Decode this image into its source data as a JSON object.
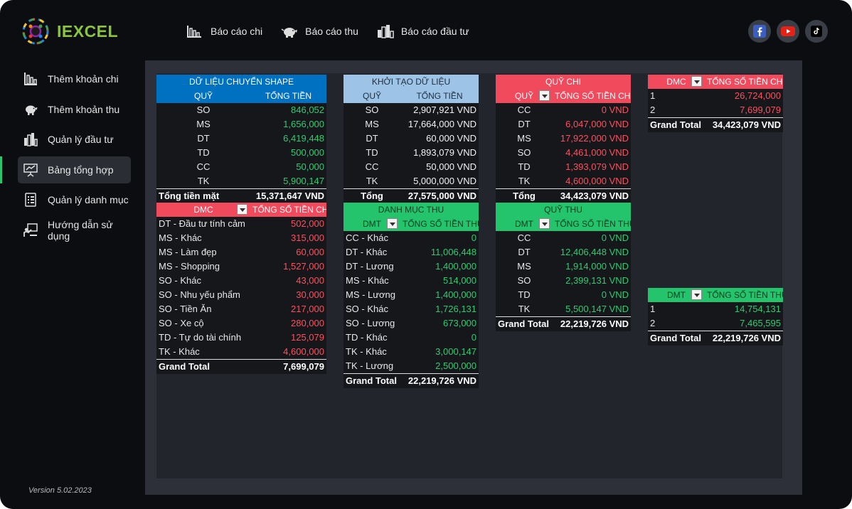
{
  "app": {
    "name": "IEXCEL",
    "version": "Version 5.02.2023"
  },
  "topnav": [
    {
      "label": "Báo cáo chi",
      "icon": "bar-chart-icon"
    },
    {
      "label": "Báo cáo thu",
      "icon": "piggy-bank-icon"
    },
    {
      "label": "Báo cáo đầu tư",
      "icon": "building-chart-icon"
    }
  ],
  "social": [
    "facebook-icon",
    "youtube-icon",
    "tiktok-icon"
  ],
  "sidebar": [
    {
      "label": "Thêm khoản chi",
      "icon": "bar-chart-icon"
    },
    {
      "label": "Thêm khoản thu",
      "icon": "piggy-bank-icon"
    },
    {
      "label": "Quản lý đầu tư",
      "icon": "building-chart-icon"
    },
    {
      "label": "Bảng tổng hợp",
      "icon": "presentation-icon",
      "active": true
    },
    {
      "label": "Quản lý danh mục",
      "icon": "list-icon"
    },
    {
      "label": "Hướng dẫn sử dụng",
      "icon": "teacher-icon"
    }
  ],
  "colors": {
    "accent_green": "#28c76f",
    "header_blue": "#0070c0",
    "header_lightblue": "#9dc3e6",
    "header_red": "#f14a5d",
    "header_green": "#23c46b"
  },
  "tables": {
    "shape": {
      "title": "DỮ LIỆU CHUYỂN SHAPE",
      "col1": "QUỸ",
      "col2": "TỔNG TIỀN",
      "rows": [
        [
          "SO",
          "846,052"
        ],
        [
          "MS",
          "1,656,000"
        ],
        [
          "DT",
          "6,419,448"
        ],
        [
          "TD",
          "500,000"
        ],
        [
          "CC",
          "50,000"
        ],
        [
          "TK",
          "5,900,147"
        ]
      ],
      "total_label": "Tổng tiền mặt",
      "total_value": "15,371,647 VND"
    },
    "init": {
      "title": "KHỞI TẠO DỮ LIỆU",
      "col1": "QUỸ",
      "col2": "TỔNG TIỀN",
      "rows": [
        [
          "SO",
          "2,907,921 VND"
        ],
        [
          "MS",
          "17,664,000 VND"
        ],
        [
          "DT",
          "60,000 VND"
        ],
        [
          "TD",
          "1,893,079 VND"
        ],
        [
          "CC",
          "50,000 VND"
        ],
        [
          "TK",
          "5,000,000 VND"
        ]
      ],
      "total_label": "Tổng",
      "total_value": "27,575,000 VND"
    },
    "quy_chi": {
      "title": "QUỸ CHI",
      "col1": "QUỸ",
      "col2": "TỔNG SỐ TIỀN CHI",
      "rows": [
        [
          "CC",
          "0 VND"
        ],
        [
          "DT",
          "6,047,000 VND"
        ],
        [
          "MS",
          "17,922,000 VND"
        ],
        [
          "SO",
          "4,461,000 VND"
        ],
        [
          "TD",
          "1,393,079 VND"
        ],
        [
          "TK",
          "4,600,000 VND"
        ]
      ],
      "total_label": "Tổng",
      "total_value": "34,423,079 VND"
    },
    "dmc_summary": {
      "col1": "DMC",
      "col2": "TỔNG SỐ TIỀN CHI",
      "rows": [
        [
          "1",
          "26,724,000"
        ],
        [
          "2",
          "7,699,079"
        ]
      ],
      "total_label": "Grand Total",
      "total_value": "34,423,079 VND"
    },
    "dmc_detail": {
      "col1": "DMC",
      "col2": "TỔNG SỐ TIỀN CHI",
      "rows": [
        [
          "DT - Đầu tư tính cảm",
          "502,000"
        ],
        [
          "MS - Khác",
          "315,000"
        ],
        [
          "MS - Làm đẹp",
          "60,000"
        ],
        [
          "MS - Shopping",
          "1,527,000"
        ],
        [
          "SO - Khác",
          "43,000"
        ],
        [
          "SO - Nhu yếu phẩm",
          "30,000"
        ],
        [
          "SO - Tiền Ăn",
          "217,000"
        ],
        [
          "SO - Xe cộ",
          "280,000"
        ],
        [
          "TD - Tự do tài chính",
          "125,079"
        ],
        [
          "TK - Khác",
          "4,600,000"
        ]
      ],
      "total_label": "Grand Total",
      "total_value": "7,699,079"
    },
    "danh_muc_thu": {
      "title": "DANH MỤC THU",
      "col1": "DMT",
      "col2": "TỔNG SỐ TIỀN THU",
      "rows": [
        [
          "CC - Khác",
          "0"
        ],
        [
          "DT - Khác",
          "11,006,448"
        ],
        [
          "DT - Lương",
          "1,400,000"
        ],
        [
          "MS - Khác",
          "514,000"
        ],
        [
          "MS - Lương",
          "1,400,000"
        ],
        [
          "SO - Khác",
          "1,726,131"
        ],
        [
          "SO - Lương",
          "673,000"
        ],
        [
          "TD - Khác",
          "0"
        ],
        [
          "TK - Khác",
          "3,000,147"
        ],
        [
          "TK - Lương",
          "2,500,000"
        ]
      ],
      "total_label": "Grand Total",
      "total_value": "22,219,726 VND"
    },
    "quy_thu": {
      "title": "QUỸ THU",
      "col1": "DMT",
      "col2": "TỔNG SỐ TIỀN THU",
      "rows": [
        [
          "CC",
          "0 VND"
        ],
        [
          "DT",
          "12,406,448 VND"
        ],
        [
          "MS",
          "1,914,000 VND"
        ],
        [
          "SO",
          "2,399,131 VND"
        ],
        [
          "TD",
          "0 VND"
        ],
        [
          "TK",
          "5,500,147 VND"
        ]
      ],
      "total_label": "Grand Total",
      "total_value": "22,219,726 VND"
    },
    "dmt_summary": {
      "col1": "DMT",
      "col2": "TỔNG SỐ TIỀN THU",
      "rows": [
        [
          "1",
          "14,754,131"
        ],
        [
          "2",
          "7,465,595"
        ]
      ],
      "total_label": "Grand Total",
      "total_value": "22,219,726 VND"
    }
  }
}
